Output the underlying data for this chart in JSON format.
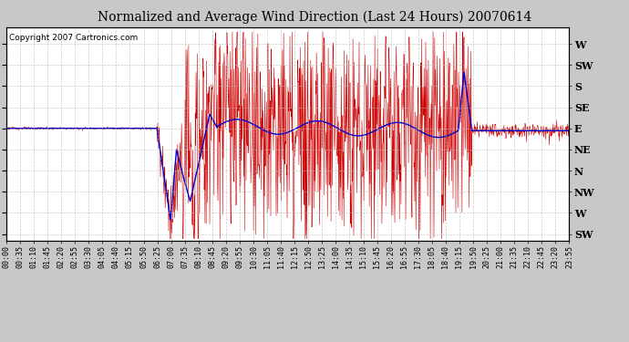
{
  "title": "Normalized and Average Wind Direction (Last 24 Hours) 20070614",
  "copyright": "Copyright 2007 Cartronics.com",
  "background_color": "#c8c8c8",
  "plot_bg_color": "#ffffff",
  "grid_color": "#bbbbbb",
  "ytick_labels": [
    "W",
    "SW",
    "S",
    "SE",
    "E",
    "NE",
    "N",
    "NW",
    "W",
    "SW"
  ],
  "ytick_values": [
    360,
    315,
    270,
    225,
    180,
    135,
    90,
    45,
    0,
    -45
  ],
  "ylim": [
    -60,
    395
  ],
  "time_labels": [
    "00:00",
    "00:35",
    "01:10",
    "01:45",
    "02:20",
    "02:55",
    "03:30",
    "04:05",
    "04:40",
    "05:15",
    "05:50",
    "06:25",
    "07:00",
    "07:35",
    "08:10",
    "08:45",
    "09:20",
    "09:55",
    "10:30",
    "11:05",
    "11:40",
    "12:15",
    "12:50",
    "13:25",
    "14:00",
    "14:35",
    "15:10",
    "15:45",
    "16:20",
    "16:55",
    "17:30",
    "18:05",
    "18:40",
    "19:15",
    "19:50",
    "20:25",
    "21:00",
    "21:35",
    "22:10",
    "22:45",
    "23:20",
    "23:55"
  ],
  "red_line_color": "#cc0000",
  "blue_line_color": "#0000cc",
  "title_fontsize": 10,
  "copyright_fontsize": 6.5,
  "tick_fontsize": 6,
  "ytick_right_fontsize": 8
}
